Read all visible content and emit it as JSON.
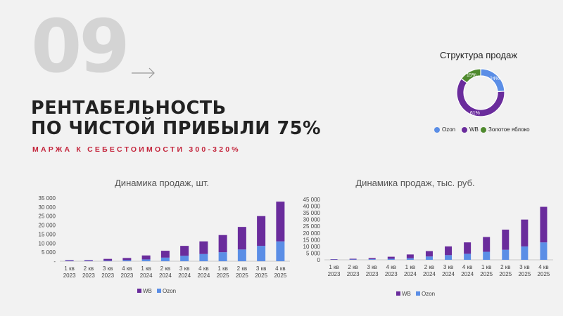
{
  "slide": {
    "number": "09",
    "headline_line1": "РЕНТАБЕЛЬНОСТЬ",
    "headline_line2": "ПО ЧИСТОЙ ПРИБЫЛИ 75%",
    "subline": "МАРЖА К СЕБЕСТОИМОСТИ 300-320%",
    "colors": {
      "accent": "#c4243b",
      "number": "#d4d4d4",
      "wb": "#6a2c9c",
      "ozon": "#5b8ee6",
      "zoloto": "#4f8a2e"
    },
    "icons": [
      "arrow-right-icon"
    ]
  },
  "chart_data": [
    {
      "type": "pie",
      "title": "Структура продаж",
      "categories": [
        "Ozon",
        "WB",
        "Золотое яблоко"
      ],
      "values": [
        24,
        61,
        15
      ],
      "value_labels": [
        "24%",
        "61%",
        "15%"
      ],
      "colors": [
        "#5b8ee6",
        "#6a2c9c",
        "#4f8a2e"
      ],
      "donut": true,
      "legend": "bottom"
    },
    {
      "type": "bar",
      "stacked": true,
      "title": "Динамика продаж, шт.",
      "categories": [
        [
          "1 кв",
          "2023"
        ],
        [
          "2 кв",
          "2023"
        ],
        [
          "3 кв",
          "2023"
        ],
        [
          "4 кв",
          "2023"
        ],
        [
          "1 кв",
          "2024"
        ],
        [
          "2 кв",
          "2024"
        ],
        [
          "3 кв",
          "2024"
        ],
        [
          "4 кв",
          "2024"
        ],
        [
          "1 кв",
          "2025"
        ],
        [
          "2 кв",
          "2025"
        ],
        [
          "3 кв",
          "2025"
        ],
        [
          "4 кв",
          "2025"
        ]
      ],
      "series": [
        {
          "name": "Ozon",
          "color": "#5b8ee6",
          "values": [
            200,
            200,
            300,
            600,
            1000,
            2000,
            3000,
            4000,
            5000,
            6500,
            8500,
            11000
          ]
        },
        {
          "name": "WB",
          "color": "#6a2c9c",
          "values": [
            400,
            400,
            1000,
            1200,
            2200,
            3800,
            5500,
            7000,
            9500,
            12500,
            16500,
            22000
          ]
        }
      ],
      "legend_order": [
        "WB",
        "Ozon"
      ],
      "yticks": [
        "-",
        "5 000",
        "10 000",
        "15 000",
        "20 000",
        "25 000",
        "30 000",
        "35 000"
      ],
      "ylim": [
        0,
        35000
      ],
      "grid": false,
      "legend": "bottom"
    },
    {
      "type": "bar",
      "stacked": true,
      "title": "Динамика продаж, тыс. руб.",
      "categories": [
        [
          "1 кв",
          "2023"
        ],
        [
          "2 кв",
          "2023"
        ],
        [
          "3 кв",
          "2023"
        ],
        [
          "4 кв",
          "2023"
        ],
        [
          "1 кв",
          "2024"
        ],
        [
          "2 кв",
          "2024"
        ],
        [
          "3 кв",
          "2024"
        ],
        [
          "4 кв",
          "2024"
        ],
        [
          "1 кв",
          "2025"
        ],
        [
          "2 кв",
          "2025"
        ],
        [
          "3 кв",
          "2025"
        ],
        [
          "4 кв",
          "2025"
        ]
      ],
      "series": [
        {
          "name": "Ozon",
          "color": "#5b8ee6",
          "values": [
            200,
            300,
            500,
            800,
            1200,
            2500,
            3500,
            4500,
            6000,
            7500,
            10000,
            13000
          ]
        },
        {
          "name": "WB",
          "color": "#6a2c9c",
          "values": [
            300,
            500,
            800,
            1500,
            2800,
            4000,
            6500,
            8500,
            11000,
            15000,
            20000,
            26500
          ]
        }
      ],
      "legend_order": [
        "WB",
        "Ozon"
      ],
      "yticks": [
        "0",
        "5 000",
        "10 000",
        "15 000",
        "20 000",
        "25 000",
        "30 000",
        "35 000",
        "40 000",
        "45 000"
      ],
      "ylim": [
        0,
        45000
      ],
      "grid": false,
      "legend": "bottom"
    }
  ]
}
